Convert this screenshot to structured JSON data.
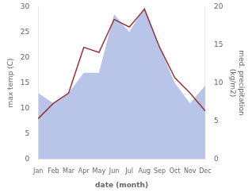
{
  "chart_data": {
    "type": "line",
    "x_label": "date (month)",
    "y_label": "max temp (C)",
    "y2_label": "med. precipitation\n(kg/m2)",
    "categories": [
      "Jan",
      "Feb",
      "Mar",
      "Apr",
      "May",
      "Jun",
      "Jul",
      "Aug",
      "Sep",
      "Oct",
      "Nov",
      "Dec"
    ],
    "series": [
      {
        "type": "area",
        "color": "#b8c4e8",
        "values": [
          13,
          11,
          13,
          17,
          17,
          28.5,
          25,
          30,
          22,
          15,
          11,
          14.5
        ]
      },
      {
        "type": "line",
        "color": "#993333",
        "values": [
          8,
          11,
          13,
          22,
          21,
          27.5,
          26,
          29.5,
          22,
          16,
          13,
          9.5
        ]
      }
    ],
    "ylim": [
      0,
      30
    ],
    "yticks": [
      0,
      5,
      10,
      15,
      20,
      25,
      30
    ],
    "y2lim": [
      0,
      20
    ],
    "y2ticks": [
      0,
      5,
      10,
      15,
      20
    ],
    "grid": false
  }
}
